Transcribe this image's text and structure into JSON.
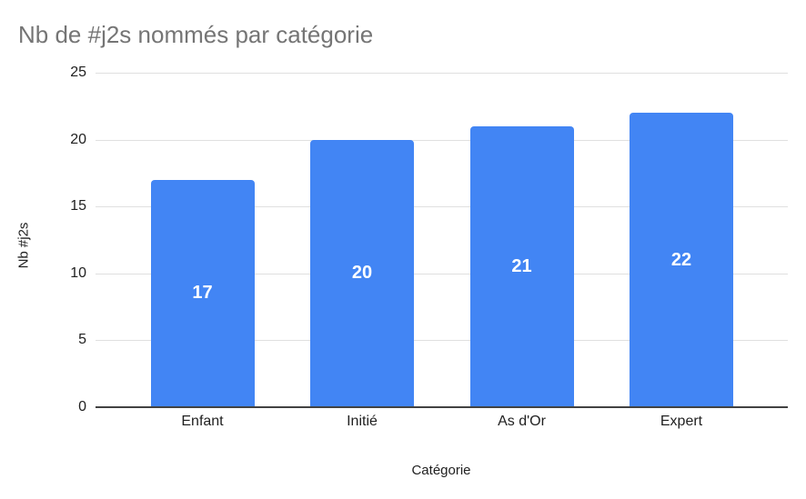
{
  "chart_data": {
    "type": "bar",
    "title": "Nb de #j2s nommés par catégorie",
    "categories": [
      "Enfant",
      "Initié",
      "As d'Or",
      "Expert"
    ],
    "values": [
      17,
      20,
      21,
      22
    ],
    "data_labels": [
      "17",
      "20",
      "21",
      "22"
    ],
    "xlabel": "Catégorie",
    "ylabel": "Nb #j2s",
    "ylim": [
      0,
      25
    ],
    "yticks": [
      0,
      5,
      10,
      15,
      20,
      25
    ],
    "grid": true,
    "legend_position": "none",
    "colors": {
      "bar": "#4285f4",
      "title_text": "#757575",
      "axis_text": "#212121",
      "gridline": "#e0e0e0",
      "baseline": "#424242",
      "bar_label_text": "#ffffff"
    }
  }
}
